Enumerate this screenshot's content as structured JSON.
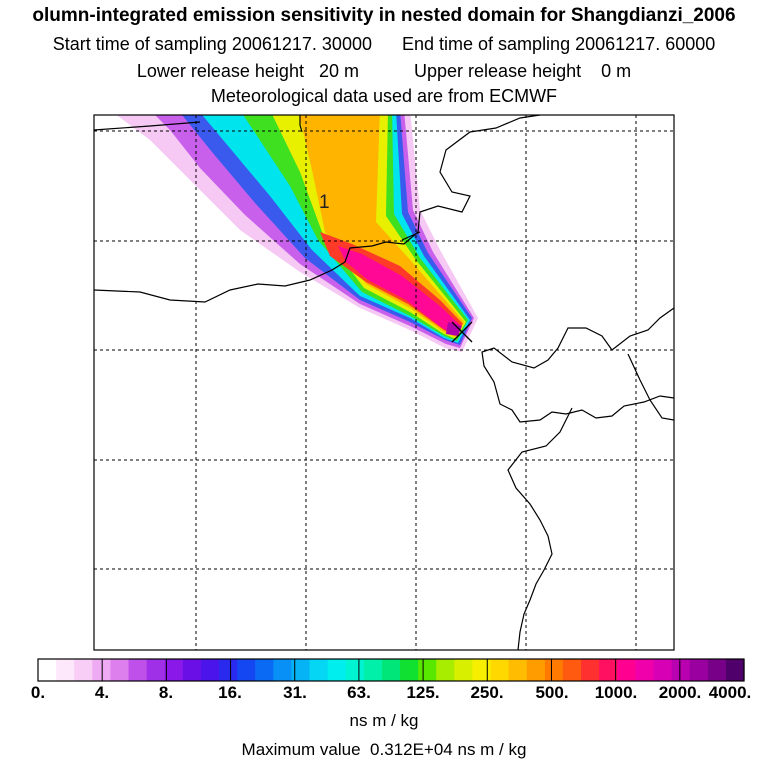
{
  "header": {
    "title": "olumn-integrated emission sensitivity in nested domain for Shangdianzi_2006",
    "start_label": "Start time of sampling",
    "start_value": "20061217. 30000",
    "end_label": "End time of sampling",
    "end_value": "20061217. 60000",
    "lower_label": "Lower release height",
    "lower_value": "20 m",
    "upper_label": "Upper release height",
    "upper_value": "0 m",
    "met_line": "Meteorological data used are from ECMWF"
  },
  "map": {
    "release_site_label": "1"
  },
  "legend": {
    "ticks": [
      "0.",
      "4.",
      "8.",
      "16.",
      "31.",
      "63.",
      "125.",
      "250.",
      "500.",
      "1000.",
      "2000.",
      "4000."
    ],
    "units": "ns m / kg",
    "colors": [
      "#ffffff",
      "#fde8fb",
      "#f8cdf6",
      "#eeaaf2",
      "#dd80ee",
      "#c050ea",
      "#a030e8",
      "#8a18e8",
      "#6a10e6",
      "#4a14ea",
      "#2a2aee",
      "#1446f2",
      "#0a6af4",
      "#0890f6",
      "#06b4f6",
      "#04d6f4",
      "#00eeee",
      "#00f4d2",
      "#00f0aa",
      "#00e678",
      "#10e030",
      "#58e800",
      "#a8ec00",
      "#d8f000",
      "#f6f000",
      "#ffd800",
      "#ffbc00",
      "#ff9c00",
      "#ff7a00",
      "#ff5a10",
      "#ff3030",
      "#ff1060",
      "#ff0090",
      "#f000aa",
      "#d800b4",
      "#b800b0",
      "#9a00a0",
      "#780088",
      "#50006a"
    ]
  },
  "footer": {
    "max_label": "Maximum value",
    "max_value": "0.312E+04",
    "max_units": "ns m / kg"
  }
}
